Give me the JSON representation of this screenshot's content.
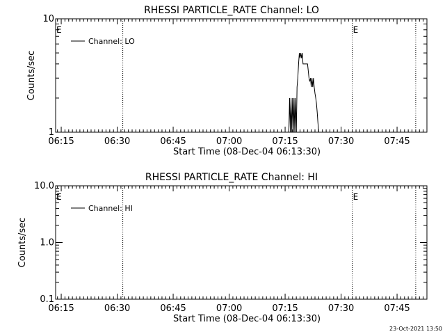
{
  "footer_timestamp": "23-Oct-2021 13:50",
  "chart_data": [
    {
      "type": "line",
      "title": "RHESSI PARTICLE_RATE Channel: LO",
      "xlabel": "Start Time (08-Dec-04 06:13:30)",
      "ylabel": "Counts/sec",
      "yscale": "log",
      "xlim": [
        "06:13:30",
        "07:53:00"
      ],
      "ylim": [
        1,
        10
      ],
      "x_ticks": [
        "06:15",
        "06:30",
        "06:45",
        "07:00",
        "07:15",
        "07:30",
        "07:45"
      ],
      "y_ticks": [
        "1",
        "10"
      ],
      "legend": {
        "label": "Channel: LO",
        "position": "top-left"
      },
      "markers": [
        {
          "label": "E",
          "time": "06:13:30",
          "labeled": true
        },
        {
          "label": "",
          "time": "06:31:30",
          "labeled": false
        },
        {
          "label": "E",
          "time": "07:33:00",
          "labeled": true
        },
        {
          "label": "",
          "time": "07:50:00",
          "labeled": false
        }
      ],
      "series": [
        {
          "name": "Channel: LO",
          "x": [
            "07:16:00",
            "07:16:12",
            "07:16:24",
            "07:16:36",
            "07:16:48",
            "07:17:00",
            "07:17:12",
            "07:17:24",
            "07:17:36",
            "07:17:48",
            "07:18:00",
            "07:18:12",
            "07:18:24",
            "07:18:36",
            "07:18:48",
            "07:19:00",
            "07:19:12",
            "07:19:24",
            "07:19:36",
            "07:19:48",
            "07:20:00",
            "07:20:12",
            "07:20:24",
            "07:20:36",
            "07:20:48",
            "07:21:00",
            "07:21:12",
            "07:21:24",
            "07:21:36",
            "07:21:48",
            "07:22:00",
            "07:22:12",
            "07:22:24",
            "07:22:36",
            "07:22:48",
            "07:23:00",
            "07:23:12",
            "07:23:24",
            "07:23:36",
            "07:23:48",
            "07:24:00",
            "07:24:12",
            "07:24:24"
          ],
          "values": [
            1,
            2,
            1,
            2,
            1,
            2,
            1,
            2,
            1,
            2,
            1,
            2.5,
            3,
            4,
            5,
            4.5,
            5,
            4.5,
            5,
            4,
            4,
            4,
            4,
            4,
            4,
            4,
            3.5,
            3,
            2.8,
            3,
            2.5,
            3,
            2.5,
            3,
            2.5,
            2.2,
            2,
            1.8,
            1.5,
            1.2,
            1,
            1,
            1
          ]
        }
      ]
    },
    {
      "type": "line",
      "title": "RHESSI PARTICLE_RATE Channel: HI",
      "xlabel": "Start Time (08-Dec-04 06:13:30)",
      "ylabel": "Counts/sec",
      "yscale": "log",
      "xlim": [
        "06:13:30",
        "07:53:00"
      ],
      "ylim": [
        0.1,
        10
      ],
      "x_ticks": [
        "06:15",
        "06:30",
        "06:45",
        "07:00",
        "07:15",
        "07:30",
        "07:45"
      ],
      "y_ticks": [
        "0.1",
        "1.0",
        "10.0"
      ],
      "legend": {
        "label": "Channel: HI",
        "position": "top-left"
      },
      "markers": [
        {
          "label": "E",
          "time": "06:13:30",
          "labeled": true
        },
        {
          "label": "",
          "time": "06:31:30",
          "labeled": false
        },
        {
          "label": "E",
          "time": "07:33:00",
          "labeled": true
        },
        {
          "label": "",
          "time": "07:50:00",
          "labeled": false
        }
      ],
      "series": [
        {
          "name": "Channel: HI",
          "x": [],
          "values": []
        }
      ]
    }
  ]
}
